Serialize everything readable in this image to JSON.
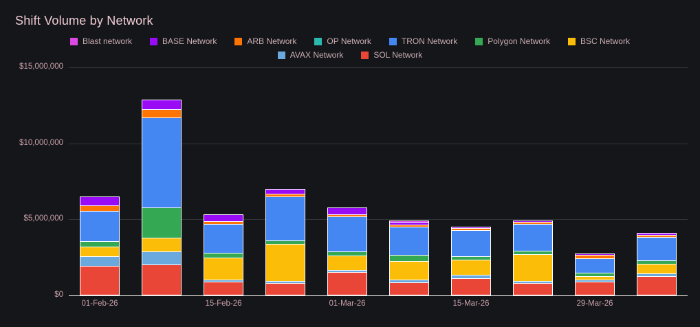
{
  "title": "Shift Volume by Network",
  "colors": {
    "background": "#15161a",
    "title_text": "#eeccd2",
    "legend_text": "#c9adb1",
    "axis_text": "#c79fa7",
    "gridline": "#33343a",
    "zero_axis_line": "#e8e6e2",
    "segment_border": "#ffffff"
  },
  "chart_data": {
    "type": "bar",
    "stacked": true,
    "title": "Shift Volume by Network",
    "xlabel": "",
    "ylabel": "",
    "ylim": [
      0,
      15000000
    ],
    "grid": true,
    "legend_position": "top-center",
    "y_ticks": [
      {
        "label": "$0",
        "value": 0
      },
      {
        "label": "$5,000,000",
        "value": 5000000
      },
      {
        "label": "$10,000,000",
        "value": 10000000
      },
      {
        "label": "$15,000,000",
        "value": 15000000
      }
    ],
    "categories": [
      "01-Feb-26",
      "",
      "15-Feb-26",
      "",
      "01-Mar-26",
      "",
      "15-Mar-26",
      "",
      "29-Mar-26",
      ""
    ],
    "series": [
      {
        "name": "Blast network",
        "color": "#dc48e2",
        "values": [
          0,
          0,
          0,
          0,
          0,
          100000,
          0,
          0,
          0,
          0
        ]
      },
      {
        "name": "BASE Network",
        "color": "#9a0bf5",
        "values": [
          650000,
          700000,
          500000,
          350000,
          480000,
          180000,
          100000,
          150000,
          60000,
          180000
        ]
      },
      {
        "name": "ARB Network",
        "color": "#ff7402",
        "values": [
          350000,
          550000,
          200000,
          160000,
          110000,
          100000,
          100000,
          90000,
          220000,
          100000
        ]
      },
      {
        "name": "OP Network",
        "color": "#2cb8ae",
        "values": [
          0,
          0,
          0,
          0,
          0,
          0,
          0,
          0,
          0,
          0
        ]
      },
      {
        "name": "TRON Network",
        "color": "#4486f2",
        "values": [
          2000000,
          5900000,
          1900000,
          2900000,
          2300000,
          1850000,
          1750000,
          1750000,
          950000,
          1500000
        ]
      },
      {
        "name": "Polygon Network",
        "color": "#34a853",
        "values": [
          380000,
          2000000,
          300000,
          240000,
          280000,
          400000,
          200000,
          200000,
          250000,
          250000
        ]
      },
      {
        "name": "BSC Network",
        "color": "#fbbd08",
        "values": [
          600000,
          900000,
          1450000,
          2450000,
          950000,
          1250000,
          1000000,
          1800000,
          230000,
          650000
        ]
      },
      {
        "name": "AVAX Network",
        "color": "#6aa9de",
        "values": [
          650000,
          850000,
          50000,
          50000,
          60000,
          160000,
          220000,
          100000,
          50000,
          180000
        ]
      },
      {
        "name": "SOL Network",
        "color": "#e94638",
        "values": [
          1900000,
          2000000,
          850000,
          750000,
          1500000,
          820000,
          1100000,
          750000,
          850000,
          1200000
        ]
      }
    ]
  }
}
